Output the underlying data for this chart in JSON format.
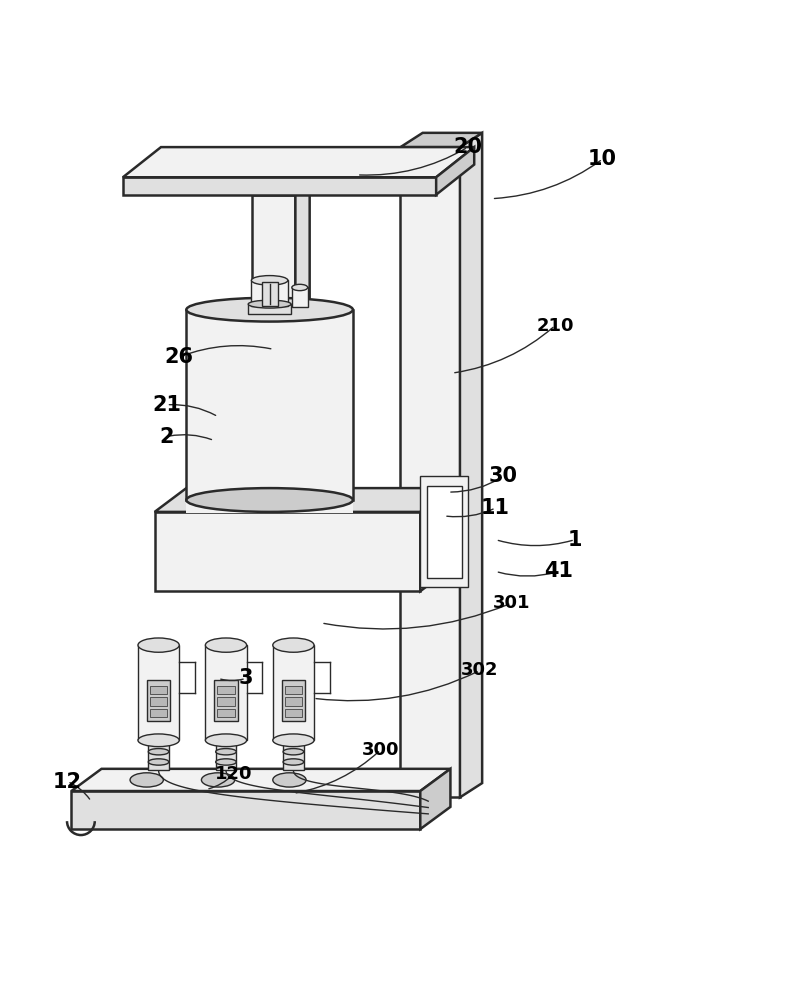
{
  "bg_color": "#ffffff",
  "lc": "#2a2a2a",
  "lw_main": 1.8,
  "lw_thin": 1.0,
  "fc_light": "#f2f2f2",
  "fc_mid": "#e0e0e0",
  "fc_dark": "#cccccc",
  "fc_darkest": "#b8b8b8",
  "leaders": {
    "10": [
      0.76,
      0.93,
      0.62,
      0.88
    ],
    "20": [
      0.59,
      0.945,
      0.45,
      0.91
    ],
    "210": [
      0.7,
      0.72,
      0.57,
      0.66
    ],
    "26": [
      0.225,
      0.68,
      0.345,
      0.69
    ],
    "21": [
      0.21,
      0.62,
      0.275,
      0.605
    ],
    "2": [
      0.21,
      0.58,
      0.27,
      0.575
    ],
    "30": [
      0.635,
      0.53,
      0.565,
      0.51
    ],
    "11": [
      0.625,
      0.49,
      0.56,
      0.48
    ],
    "1": [
      0.725,
      0.45,
      0.625,
      0.45
    ],
    "41": [
      0.705,
      0.41,
      0.625,
      0.41
    ],
    "301": [
      0.645,
      0.37,
      0.405,
      0.345
    ],
    "3": [
      0.31,
      0.275,
      0.275,
      0.275
    ],
    "302": [
      0.605,
      0.285,
      0.395,
      0.25
    ],
    "300": [
      0.48,
      0.185,
      0.37,
      0.13
    ],
    "120": [
      0.295,
      0.155,
      0.26,
      0.135
    ],
    "12": [
      0.085,
      0.145,
      0.115,
      0.12
    ]
  }
}
